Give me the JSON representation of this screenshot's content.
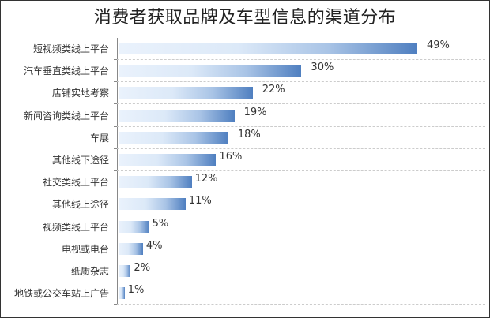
{
  "title": "消费者获取品牌及车型信息的渠道分布",
  "chart_data": {
    "type": "bar",
    "orientation": "horizontal",
    "title": "消费者获取品牌及车型信息的渠道分布",
    "xlabel": "",
    "ylabel": "",
    "grid": true,
    "legend": null,
    "categories": [
      "短视频类线上平台",
      "汽车垂直类线上平台",
      "店铺实地考察",
      "新闻咨询类线上平台",
      "车展",
      "其他线下途径",
      "社交类线上平台",
      "其他线上途径",
      "视频类线上平台",
      "电视或电台",
      "纸质杂志",
      "地铁或公交车站上广告"
    ],
    "values": [
      49,
      30,
      22,
      19,
      18,
      16,
      12,
      11,
      5,
      4,
      2,
      1
    ],
    "labels": [
      "49%",
      "30%",
      "22%",
      "19%",
      "18%",
      "16%",
      "12%",
      "11%",
      "5%",
      "4%",
      "2%",
      "1%"
    ],
    "xlim": [
      0,
      55
    ]
  }
}
